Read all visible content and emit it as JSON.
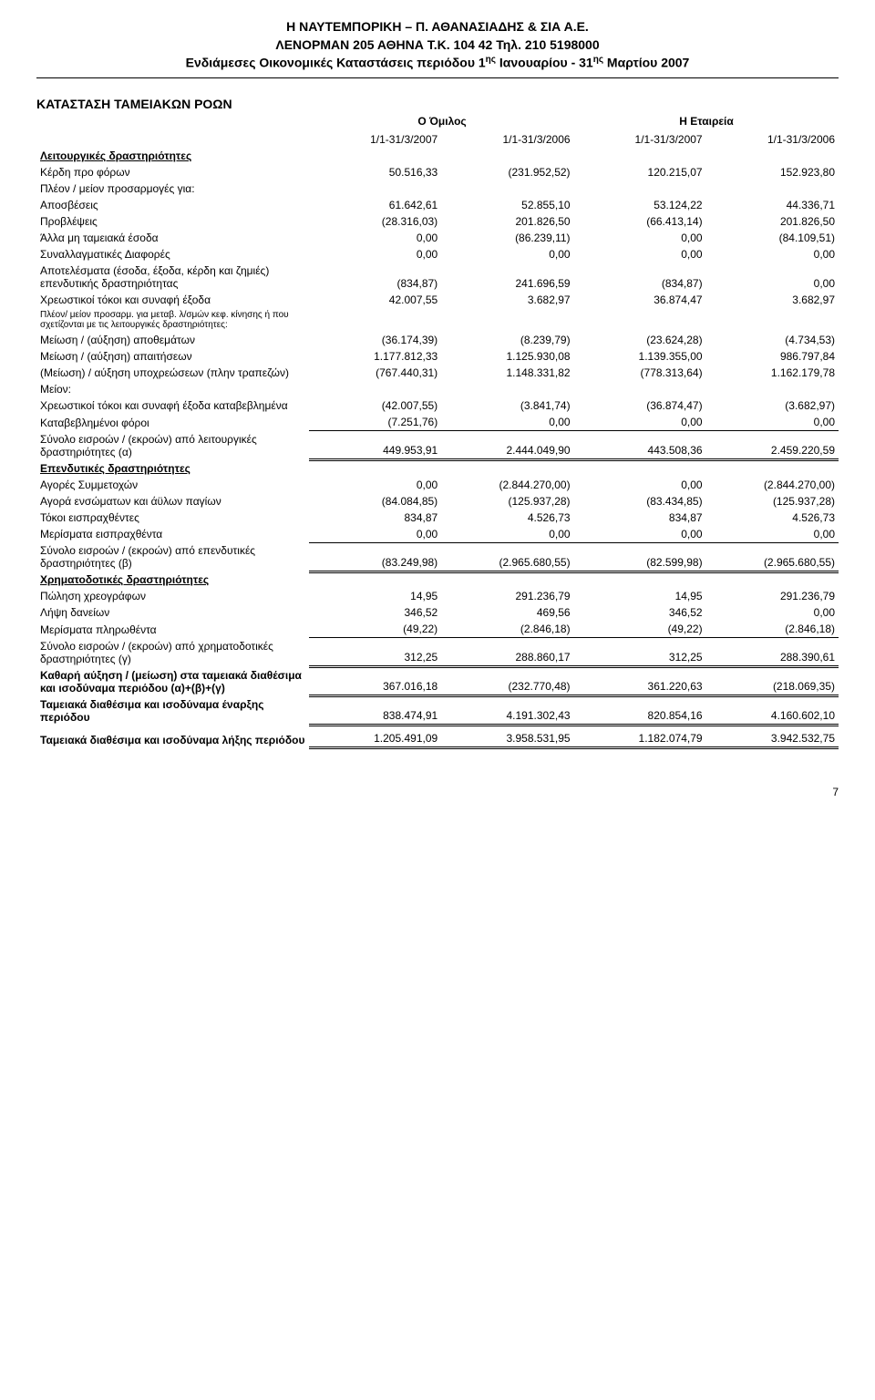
{
  "header": {
    "line1": "Η ΝΑΥΤΕΜΠΟΡΙΚΗ – Π. ΑΘΑΝΑΣΙΑΔΗΣ & ΣΙΑ Α.Ε.",
    "line2": "ΛΕΝΟΡΜΑΝ 205 ΑΘΗΝΑ Τ.Κ. 104 42 Τηλ.  210 5198000",
    "line3_a": "Ενδιάμεσες Οικονομικές Καταστάσεις περιόδου 1",
    "line3_sup1": "ης",
    "line3_b": " Ιανουαρίου - 31",
    "line3_sup2": "ης",
    "line3_c": " Μαρτίου 2007"
  },
  "title": "ΚΑΤΑΣΤΑΣΗ ΤΑΜΕΙΑΚΩΝ ΡΟΩΝ",
  "group_group": "Ο Όμιλος",
  "group_company": "Η Εταιρεία",
  "col1": "1/1-31/3/2007",
  "col2": "1/1-31/3/2006",
  "col3": "1/1-31/3/2007",
  "col4": "1/1-31/3/2006",
  "sec_op": "Λειτουργικές δραστηριότητες",
  "r_profit": {
    "l": "Κέρδη προ φόρων",
    "c": [
      "50.516,33",
      "(231.952,52)",
      "120.215,07",
      "152.923,80"
    ]
  },
  "r_plus_minus": "Πλέον / μείον προσαρμογές για:",
  "r_depr": {
    "l": "Αποσβέσεις",
    "c": [
      "61.642,61",
      "52.855,10",
      "53.124,22",
      "44.336,71"
    ]
  },
  "r_prov": {
    "l": "Προβλέψεις",
    "c": [
      "(28.316,03)",
      "201.826,50",
      "(66.413,14)",
      "201.826,50"
    ]
  },
  "r_other": {
    "l": "Άλλα μη ταμειακά έσοδα",
    "c": [
      "0,00",
      "(86.239,11)",
      "0,00",
      "(84.109,51)"
    ]
  },
  "r_fx": {
    "l": "Συναλλαγματικές Διαφορές",
    "c": [
      "0,00",
      "0,00",
      "0,00",
      "0,00"
    ]
  },
  "r_inv_res": {
    "l": "Αποτελέσματα (έσοδα, έξοδα, κέρδη και ζημιές) επενδυτικής δραστηριότητας",
    "c": [
      "(834,87)",
      "241.696,59",
      "(834,87)",
      "0,00"
    ]
  },
  "r_int_exp": {
    "l": "Χρεωστικοί τόκοι και συναφή έξοδα",
    "c": [
      "42.007,55",
      "3.682,97",
      "36.874,47",
      "3.682,97"
    ]
  },
  "r_pm2": "Πλέον/ μείον προσαρμ. για μεταβ. λ/σμών κεφ. κίνησης ή που σχετίζονται με τις λειτουργικές δραστηριότητες:",
  "r_inv_dec": {
    "l": "Μείωση / (αύξηση) αποθεμάτων",
    "c": [
      "(36.174,39)",
      "(8.239,79)",
      "(23.624,28)",
      "(4.734,53)"
    ]
  },
  "r_rec_dec": {
    "l": "Μείωση / (αύξηση) απαιτήσεων",
    "c": [
      "1.177.812,33",
      "1.125.930,08",
      "1.139.355,00",
      "986.797,84"
    ]
  },
  "r_liab": {
    "l": "(Μείωση) / αύξηση υποχρεώσεων (πλην τραπεζών)",
    "c": [
      "(767.440,31)",
      "1.148.331,82",
      "(778.313,64)",
      "1.162.179,78"
    ]
  },
  "r_minus": "Μείον:",
  "r_int_paid": {
    "l": "Χρεωστικοί τόκοι και συναφή έξοδα καταβεβλημένα",
    "c": [
      "(42.007,55)",
      "(3.841,74)",
      "(36.874,47)",
      "(3.682,97)"
    ]
  },
  "r_tax_paid": {
    "l": "Καταβεβλημένοι φόροι",
    "c": [
      "(7.251,76)",
      "0,00",
      "0,00",
      "0,00"
    ]
  },
  "r_op_total": {
    "l": "Σύνολο εισροών / (εκροών) από λειτουργικές δραστηριότητες (α)",
    "c": [
      "449.953,91",
      "2.444.049,90",
      "443.508,36",
      "2.459.220,59"
    ]
  },
  "sec_inv": "Επενδυτικές δραστηριότητες",
  "r_buy_aff": {
    "l": "Αγορές Συμμετοχών",
    "c": [
      "0,00",
      "(2.844.270,00)",
      "0,00",
      "(2.844.270,00)"
    ]
  },
  "r_buy_fixed": {
    "l": "Αγορά ενσώματων και άϋλων παγίων",
    "c": [
      "(84.084,85)",
      "(125.937,28)",
      "(83.434,85)",
      "(125.937,28)"
    ]
  },
  "r_int_rec": {
    "l": "Τόκοι εισπραχθέντες",
    "c": [
      "834,87",
      "4.526,73",
      "834,87",
      "4.526,73"
    ]
  },
  "r_div_rec": {
    "l": "Μερίσματα εισπραχθέντα",
    "c": [
      "0,00",
      "0,00",
      "0,00",
      "0,00"
    ]
  },
  "r_inv_total": {
    "l": "Σύνολο εισροών / (εκροών) από επενδυτικές δραστηριότητες (β)",
    "c": [
      "(83.249,98)",
      "(2.965.680,55)",
      "(82.599,98)",
      "(2.965.680,55)"
    ]
  },
  "sec_fin": "Χρηματοδοτικές δραστηριότητες",
  "r_sell_sec": {
    "l": "Πώληση χρεογράφων",
    "c": [
      "14,95",
      "291.236,79",
      "14,95",
      "291.236,79"
    ]
  },
  "r_loan": {
    "l": "Λήψη δανείων",
    "c": [
      "346,52",
      "469,56",
      "346,52",
      "0,00"
    ]
  },
  "r_div_paid": {
    "l": "Μερίσματα πληρωθέντα",
    "c": [
      "(49,22)",
      "(2.846,18)",
      "(49,22)",
      "(2.846,18)"
    ]
  },
  "r_fin_total": {
    "l": "Σύνολο εισροών / (εκροών) από χρηματοδοτικές δραστηριότητες (γ)",
    "c": [
      "312,25",
      "288.860,17",
      "312,25",
      "288.390,61"
    ]
  },
  "r_net": {
    "l": "Καθαρή αύξηση / (μείωση) στα ταμειακά διαθέσιμα και ισοδύναμα περιόδου (α)+(β)+(γ)",
    "c": [
      "367.016,18",
      "(232.770,48)",
      "361.220,63",
      "(218.069,35)"
    ]
  },
  "r_cash_beg": {
    "l": "Ταμειακά διαθέσιμα και ισοδύναμα έναρξης περιόδου",
    "c": [
      "838.474,91",
      "4.191.302,43",
      "820.854,16",
      "4.160.602,10"
    ]
  },
  "r_cash_end": {
    "l": "Ταμειακά διαθέσιμα και ισοδύναμα λήξης περιόδου",
    "c": [
      "1.205.491,09",
      "3.958.531,95",
      "1.182.074,79",
      "3.942.532,75"
    ]
  },
  "page_num": "7",
  "colors": {
    "text": "#000000",
    "bg": "#ffffff",
    "rule": "#000000"
  }
}
